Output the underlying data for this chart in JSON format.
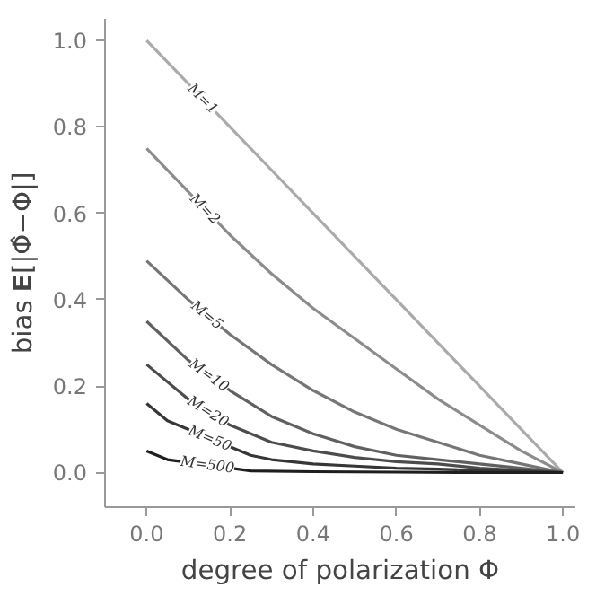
{
  "chart_data": {
    "type": "line",
    "xlabel": "degree of polarization Φ",
    "ylabel": "bias 𝐄[|Φ̂−Φ|]",
    "x": [
      0,
      0.1,
      0.2,
      0.3,
      0.4,
      0.5,
      0.6,
      0.7,
      0.8,
      0.9,
      1.0
    ],
    "series": [
      {
        "color": "#aaaaaa",
        "values": [
          1.0,
          0.9,
          0.8,
          0.7,
          0.6,
          0.5,
          0.4,
          0.3,
          0.2,
          0.1,
          0
        ]
      },
      {
        "color": "#8c8c8c",
        "values": [
          0.75,
          0.65,
          0.55,
          0.46,
          0.38,
          0.31,
          0.24,
          0.17,
          0.11,
          0.05,
          0
        ]
      },
      {
        "color": "#767676",
        "values": [
          0.49,
          0.4,
          0.32,
          0.25,
          0.19,
          0.14,
          0.1,
          0.07,
          0.04,
          0.02,
          0
        ]
      },
      {
        "color": "#606060",
        "values": [
          0.35,
          0.26,
          0.19,
          0.13,
          0.09,
          0.06,
          0.04,
          0.03,
          0.02,
          0.01,
          0
        ]
      },
      {
        "color": "#4c4c4c",
        "values": [
          0.25,
          0.17,
          0.11,
          0.07,
          0.05,
          0.035,
          0.025,
          0.02,
          0.01,
          0.005,
          0
        ]
      },
      {
        "color": "#363636",
        "x": [
          0,
          0.05,
          0.25,
          0.3,
          0.4,
          0.5,
          0.6,
          0.7,
          0.8,
          0.9,
          1.0
        ],
        "values": [
          0.16,
          0.12,
          0.04,
          0.03,
          0.02,
          0.015,
          0.01,
          0.008,
          0.005,
          0.003,
          0
        ]
      },
      {
        "color": "#1e1e1e",
        "x": [
          0,
          0.05,
          0.25,
          0.4,
          0.6,
          0.8,
          1.0
        ],
        "values": [
          0.05,
          0.03,
          0.004,
          0.002,
          0.001,
          0,
          0
        ]
      }
    ],
    "annotations": [
      {
        "text": "M=1",
        "x": 0.135,
        "y": 0.865
      },
      {
        "text": "M=2",
        "x": 0.14,
        "y": 0.61
      },
      {
        "text": "M=5",
        "x": 0.145,
        "y": 0.364
      },
      {
        "text": "M=10",
        "x": 0.15,
        "y": 0.225
      },
      {
        "text": "M=20",
        "x": 0.148,
        "y": 0.141
      },
      {
        "text": "M=50",
        "x": 0.152,
        "y": 0.079
      },
      {
        "text": "M=500",
        "x": 0.146,
        "y": 0.018
      }
    ],
    "xlim": [
      -0.1,
      1.03
    ],
    "ylim": [
      -0.08,
      1.05
    ],
    "xticks": [
      {
        "value": 0,
        "label": "0.0"
      },
      0.2,
      0.4,
      0.6,
      0.8,
      {
        "value": 1,
        "label": "1.0"
      }
    ],
    "yticks": [
      {
        "value": 0,
        "label": "0.0"
      },
      0.2,
      0.4,
      0.6,
      0.8,
      {
        "value": 1,
        "label": "1.0"
      }
    ],
    "grid": false
  }
}
